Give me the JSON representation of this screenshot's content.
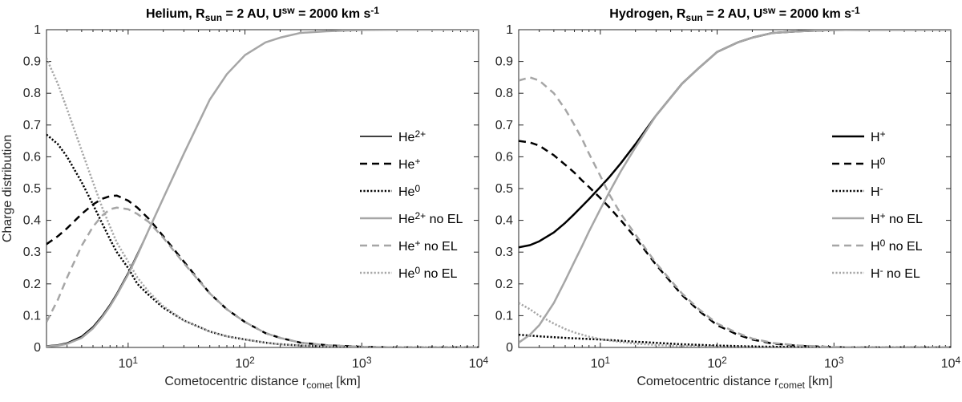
{
  "chart_data": [
    {
      "type": "line",
      "title_parts": [
        "Helium, R",
        "sun",
        " = 2 AU, U",
        "sw",
        " = 2000 km s",
        "-1"
      ],
      "xlabel_parts": [
        "Cometocentric distance r",
        "comet",
        " [km]"
      ],
      "ylabel": "Charge distribution",
      "xscale": "log",
      "xlim": [
        2,
        10000
      ],
      "ylim": [
        0,
        1
      ],
      "yticks": [
        "0",
        "0.1",
        "0.2",
        "0.3",
        "0.4",
        "0.5",
        "0.6",
        "0.7",
        "0.8",
        "0.9",
        "1"
      ],
      "xticks": [
        {
          "base": "10",
          "exp": "1"
        },
        {
          "base": "10",
          "exp": "2"
        },
        {
          "base": "10",
          "exp": "3"
        },
        {
          "base": "10",
          "exp": "4"
        }
      ],
      "legend_position": "center-right",
      "series": [
        {
          "name": "He2+",
          "label_parts": [
            "He",
            "2+",
            ""
          ],
          "color": "#000000",
          "dash": "solid",
          "width": 1.6,
          "x": [
            2,
            2.5,
            3,
            4,
            5,
            6,
            7,
            8,
            10,
            12,
            15,
            20,
            30,
            50,
            70,
            100,
            150,
            200,
            300,
            500,
            1000,
            2000,
            10000
          ],
          "y": [
            0.005,
            0.008,
            0.014,
            0.035,
            0.065,
            0.1,
            0.135,
            0.17,
            0.235,
            0.295,
            0.37,
            0.47,
            0.61,
            0.78,
            0.86,
            0.92,
            0.96,
            0.975,
            0.99,
            0.995,
            0.999,
            1.0,
            1.0
          ]
        },
        {
          "name": "He+",
          "label_parts": [
            "He",
            "+",
            ""
          ],
          "color": "#000000",
          "dash": "dashed",
          "width": 2.5,
          "x": [
            2,
            2.5,
            3,
            4,
            5,
            6,
            7,
            8,
            10,
            12,
            15,
            20,
            30,
            50,
            70,
            100,
            150,
            200,
            300,
            500,
            1000,
            2000,
            10000
          ],
          "y": [
            0.325,
            0.35,
            0.375,
            0.42,
            0.45,
            0.468,
            0.476,
            0.478,
            0.462,
            0.44,
            0.405,
            0.35,
            0.27,
            0.17,
            0.12,
            0.08,
            0.045,
            0.03,
            0.015,
            0.007,
            0.002,
            0.0,
            0.0
          ]
        },
        {
          "name": "He0",
          "label_parts": [
            "He",
            "0",
            ""
          ],
          "color": "#000000",
          "dash": "dotted",
          "width": 2.5,
          "x": [
            2,
            2.5,
            3,
            4,
            5,
            6,
            7,
            8,
            10,
            12,
            15,
            20,
            30,
            50,
            70,
            100,
            150,
            200,
            300,
            500,
            1000,
            2000,
            10000
          ],
          "y": [
            0.67,
            0.64,
            0.6,
            0.52,
            0.45,
            0.39,
            0.34,
            0.3,
            0.25,
            0.2,
            0.165,
            0.125,
            0.085,
            0.05,
            0.035,
            0.025,
            0.015,
            0.01,
            0.006,
            0.003,
            0.001,
            0.0,
            0.0
          ]
        },
        {
          "name": "He2+ no EL",
          "label_parts": [
            "He",
            "2+",
            " no EL"
          ],
          "color": "#a6a6a6",
          "dash": "solid",
          "width": 2.5,
          "x": [
            2,
            2.5,
            3,
            4,
            5,
            6,
            7,
            8,
            10,
            12,
            15,
            20,
            30,
            50,
            70,
            100,
            150,
            200,
            300,
            500,
            1000,
            2000,
            10000
          ],
          "y": [
            0.003,
            0.006,
            0.011,
            0.03,
            0.06,
            0.095,
            0.13,
            0.165,
            0.23,
            0.29,
            0.37,
            0.47,
            0.61,
            0.78,
            0.86,
            0.92,
            0.96,
            0.975,
            0.99,
            0.995,
            0.999,
            1.0,
            1.0
          ]
        },
        {
          "name": "He+ no EL",
          "label_parts": [
            "He",
            "+",
            " no EL"
          ],
          "color": "#a6a6a6",
          "dash": "dashed",
          "width": 2.5,
          "x": [
            2,
            2.5,
            3,
            4,
            5,
            6,
            7,
            8,
            10,
            12,
            15,
            20,
            30,
            50,
            70,
            100,
            150,
            200,
            300,
            500,
            1000,
            2000,
            10000
          ],
          "y": [
            0.08,
            0.15,
            0.22,
            0.32,
            0.38,
            0.415,
            0.435,
            0.44,
            0.435,
            0.42,
            0.395,
            0.345,
            0.265,
            0.17,
            0.12,
            0.08,
            0.045,
            0.03,
            0.015,
            0.007,
            0.002,
            0.0,
            0.0
          ]
        },
        {
          "name": "He0 no EL",
          "label_parts": [
            "He",
            "0",
            " no EL"
          ],
          "color": "#a6a6a6",
          "dash": "dotted",
          "width": 2.5,
          "x": [
            2,
            2.5,
            3,
            4,
            5,
            6,
            7,
            8,
            10,
            12,
            15,
            20,
            30,
            50,
            70,
            100,
            150,
            200,
            300,
            500,
            1000,
            2000,
            10000
          ],
          "y": [
            0.91,
            0.83,
            0.75,
            0.62,
            0.52,
            0.44,
            0.38,
            0.33,
            0.27,
            0.22,
            0.175,
            0.13,
            0.085,
            0.05,
            0.035,
            0.025,
            0.015,
            0.01,
            0.006,
            0.003,
            0.001,
            0.0,
            0.0
          ]
        }
      ]
    },
    {
      "type": "line",
      "title_parts": [
        "Hydrogen, R",
        "sun",
        " = 2 AU, U",
        "sw",
        " = 2000 km s",
        "-1"
      ],
      "xlabel_parts": [
        "Cometocentric distance r",
        "comet",
        " [km]"
      ],
      "ylabel": "",
      "xscale": "log",
      "xlim": [
        2,
        10000
      ],
      "ylim": [
        0,
        1
      ],
      "yticks": [
        "0",
        "0.1",
        "0.2",
        "0.3",
        "0.4",
        "0.5",
        "0.6",
        "0.7",
        "0.8",
        "0.9",
        "1"
      ],
      "xticks": [
        {
          "base": "10",
          "exp": "1"
        },
        {
          "base": "10",
          "exp": "2"
        },
        {
          "base": "10",
          "exp": "3"
        },
        {
          "base": "10",
          "exp": "4"
        }
      ],
      "legend_position": "center-right",
      "series": [
        {
          "name": "H+",
          "label_parts": [
            "H",
            "+",
            ""
          ],
          "color": "#000000",
          "dash": "solid",
          "width": 2.5,
          "x": [
            2,
            2.5,
            3,
            4,
            5,
            6,
            7,
            8,
            10,
            12,
            15,
            20,
            30,
            50,
            70,
            100,
            150,
            200,
            300,
            500,
            1000,
            2000,
            10000
          ],
          "y": [
            0.315,
            0.322,
            0.334,
            0.362,
            0.392,
            0.42,
            0.445,
            0.467,
            0.505,
            0.537,
            0.58,
            0.64,
            0.73,
            0.83,
            0.88,
            0.93,
            0.96,
            0.975,
            0.99,
            0.995,
            0.999,
            1.0,
            1.0
          ]
        },
        {
          "name": "H0",
          "label_parts": [
            "H",
            "0",
            ""
          ],
          "color": "#000000",
          "dash": "dashed",
          "width": 2.5,
          "x": [
            2,
            2.5,
            3,
            4,
            5,
            6,
            7,
            8,
            10,
            12,
            15,
            20,
            30,
            50,
            70,
            100,
            150,
            200,
            300,
            500,
            1000,
            2000,
            10000
          ],
          "y": [
            0.65,
            0.645,
            0.635,
            0.605,
            0.575,
            0.55,
            0.525,
            0.505,
            0.47,
            0.44,
            0.4,
            0.345,
            0.26,
            0.165,
            0.115,
            0.07,
            0.04,
            0.025,
            0.012,
            0.005,
            0.001,
            0.0,
            0.0
          ]
        },
        {
          "name": "H-",
          "label_parts": [
            "H",
            "-",
            ""
          ],
          "color": "#000000",
          "dash": "dotted",
          "width": 2.5,
          "x": [
            2,
            3,
            5,
            10,
            20,
            50,
            100,
            200,
            500,
            1000,
            10000
          ],
          "y": [
            0.04,
            0.035,
            0.03,
            0.025,
            0.018,
            0.01,
            0.006,
            0.003,
            0.001,
            0.0,
            0.0
          ]
        },
        {
          "name": "H+ no EL",
          "label_parts": [
            "H",
            "+",
            " no EL"
          ],
          "color": "#a6a6a6",
          "dash": "solid",
          "width": 2.5,
          "x": [
            2,
            2.5,
            3,
            4,
            5,
            6,
            7,
            8,
            10,
            12,
            15,
            20,
            30,
            50,
            70,
            100,
            150,
            200,
            300,
            500,
            1000,
            2000,
            10000
          ],
          "y": [
            0.015,
            0.04,
            0.07,
            0.14,
            0.21,
            0.27,
            0.32,
            0.365,
            0.435,
            0.49,
            0.555,
            0.63,
            0.73,
            0.83,
            0.88,
            0.93,
            0.96,
            0.975,
            0.99,
            0.995,
            0.999,
            1.0,
            1.0
          ]
        },
        {
          "name": "H0 no EL",
          "label_parts": [
            "H",
            "0",
            " no EL"
          ],
          "color": "#a6a6a6",
          "dash": "dashed",
          "width": 2.5,
          "x": [
            2,
            2.5,
            3,
            4,
            5,
            6,
            7,
            8,
            10,
            12,
            15,
            20,
            30,
            50,
            70,
            100,
            150,
            200,
            300,
            500,
            1000,
            2000,
            10000
          ],
          "y": [
            0.84,
            0.85,
            0.84,
            0.8,
            0.75,
            0.7,
            0.655,
            0.61,
            0.54,
            0.48,
            0.42,
            0.355,
            0.265,
            0.17,
            0.12,
            0.075,
            0.045,
            0.028,
            0.014,
            0.006,
            0.001,
            0.0,
            0.0
          ]
        },
        {
          "name": "H- no EL",
          "label_parts": [
            "H",
            "-",
            " no EL"
          ],
          "color": "#a6a6a6",
          "dash": "dotted",
          "width": 2.5,
          "x": [
            2,
            2.5,
            3,
            4,
            5,
            6,
            8,
            10,
            15,
            20,
            30,
            50,
            100,
            200,
            500,
            1000,
            10000
          ],
          "y": [
            0.14,
            0.12,
            0.1,
            0.075,
            0.058,
            0.047,
            0.034,
            0.026,
            0.017,
            0.012,
            0.008,
            0.004,
            0.002,
            0.001,
            0.0,
            0.0,
            0.0
          ]
        }
      ]
    }
  ]
}
